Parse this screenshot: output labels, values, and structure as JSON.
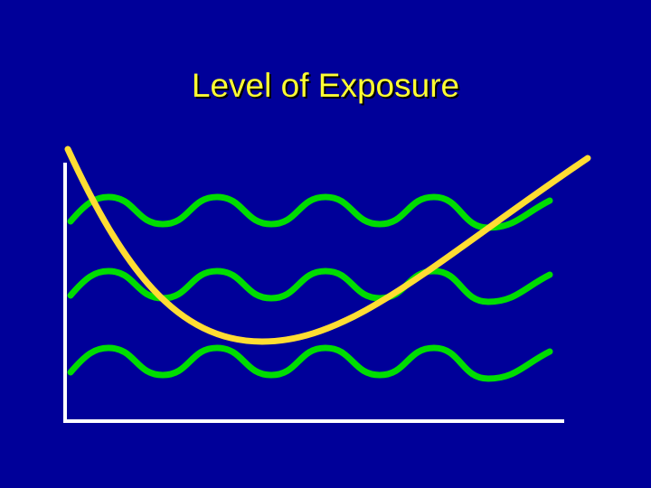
{
  "title": "Level of Exposure"
}
